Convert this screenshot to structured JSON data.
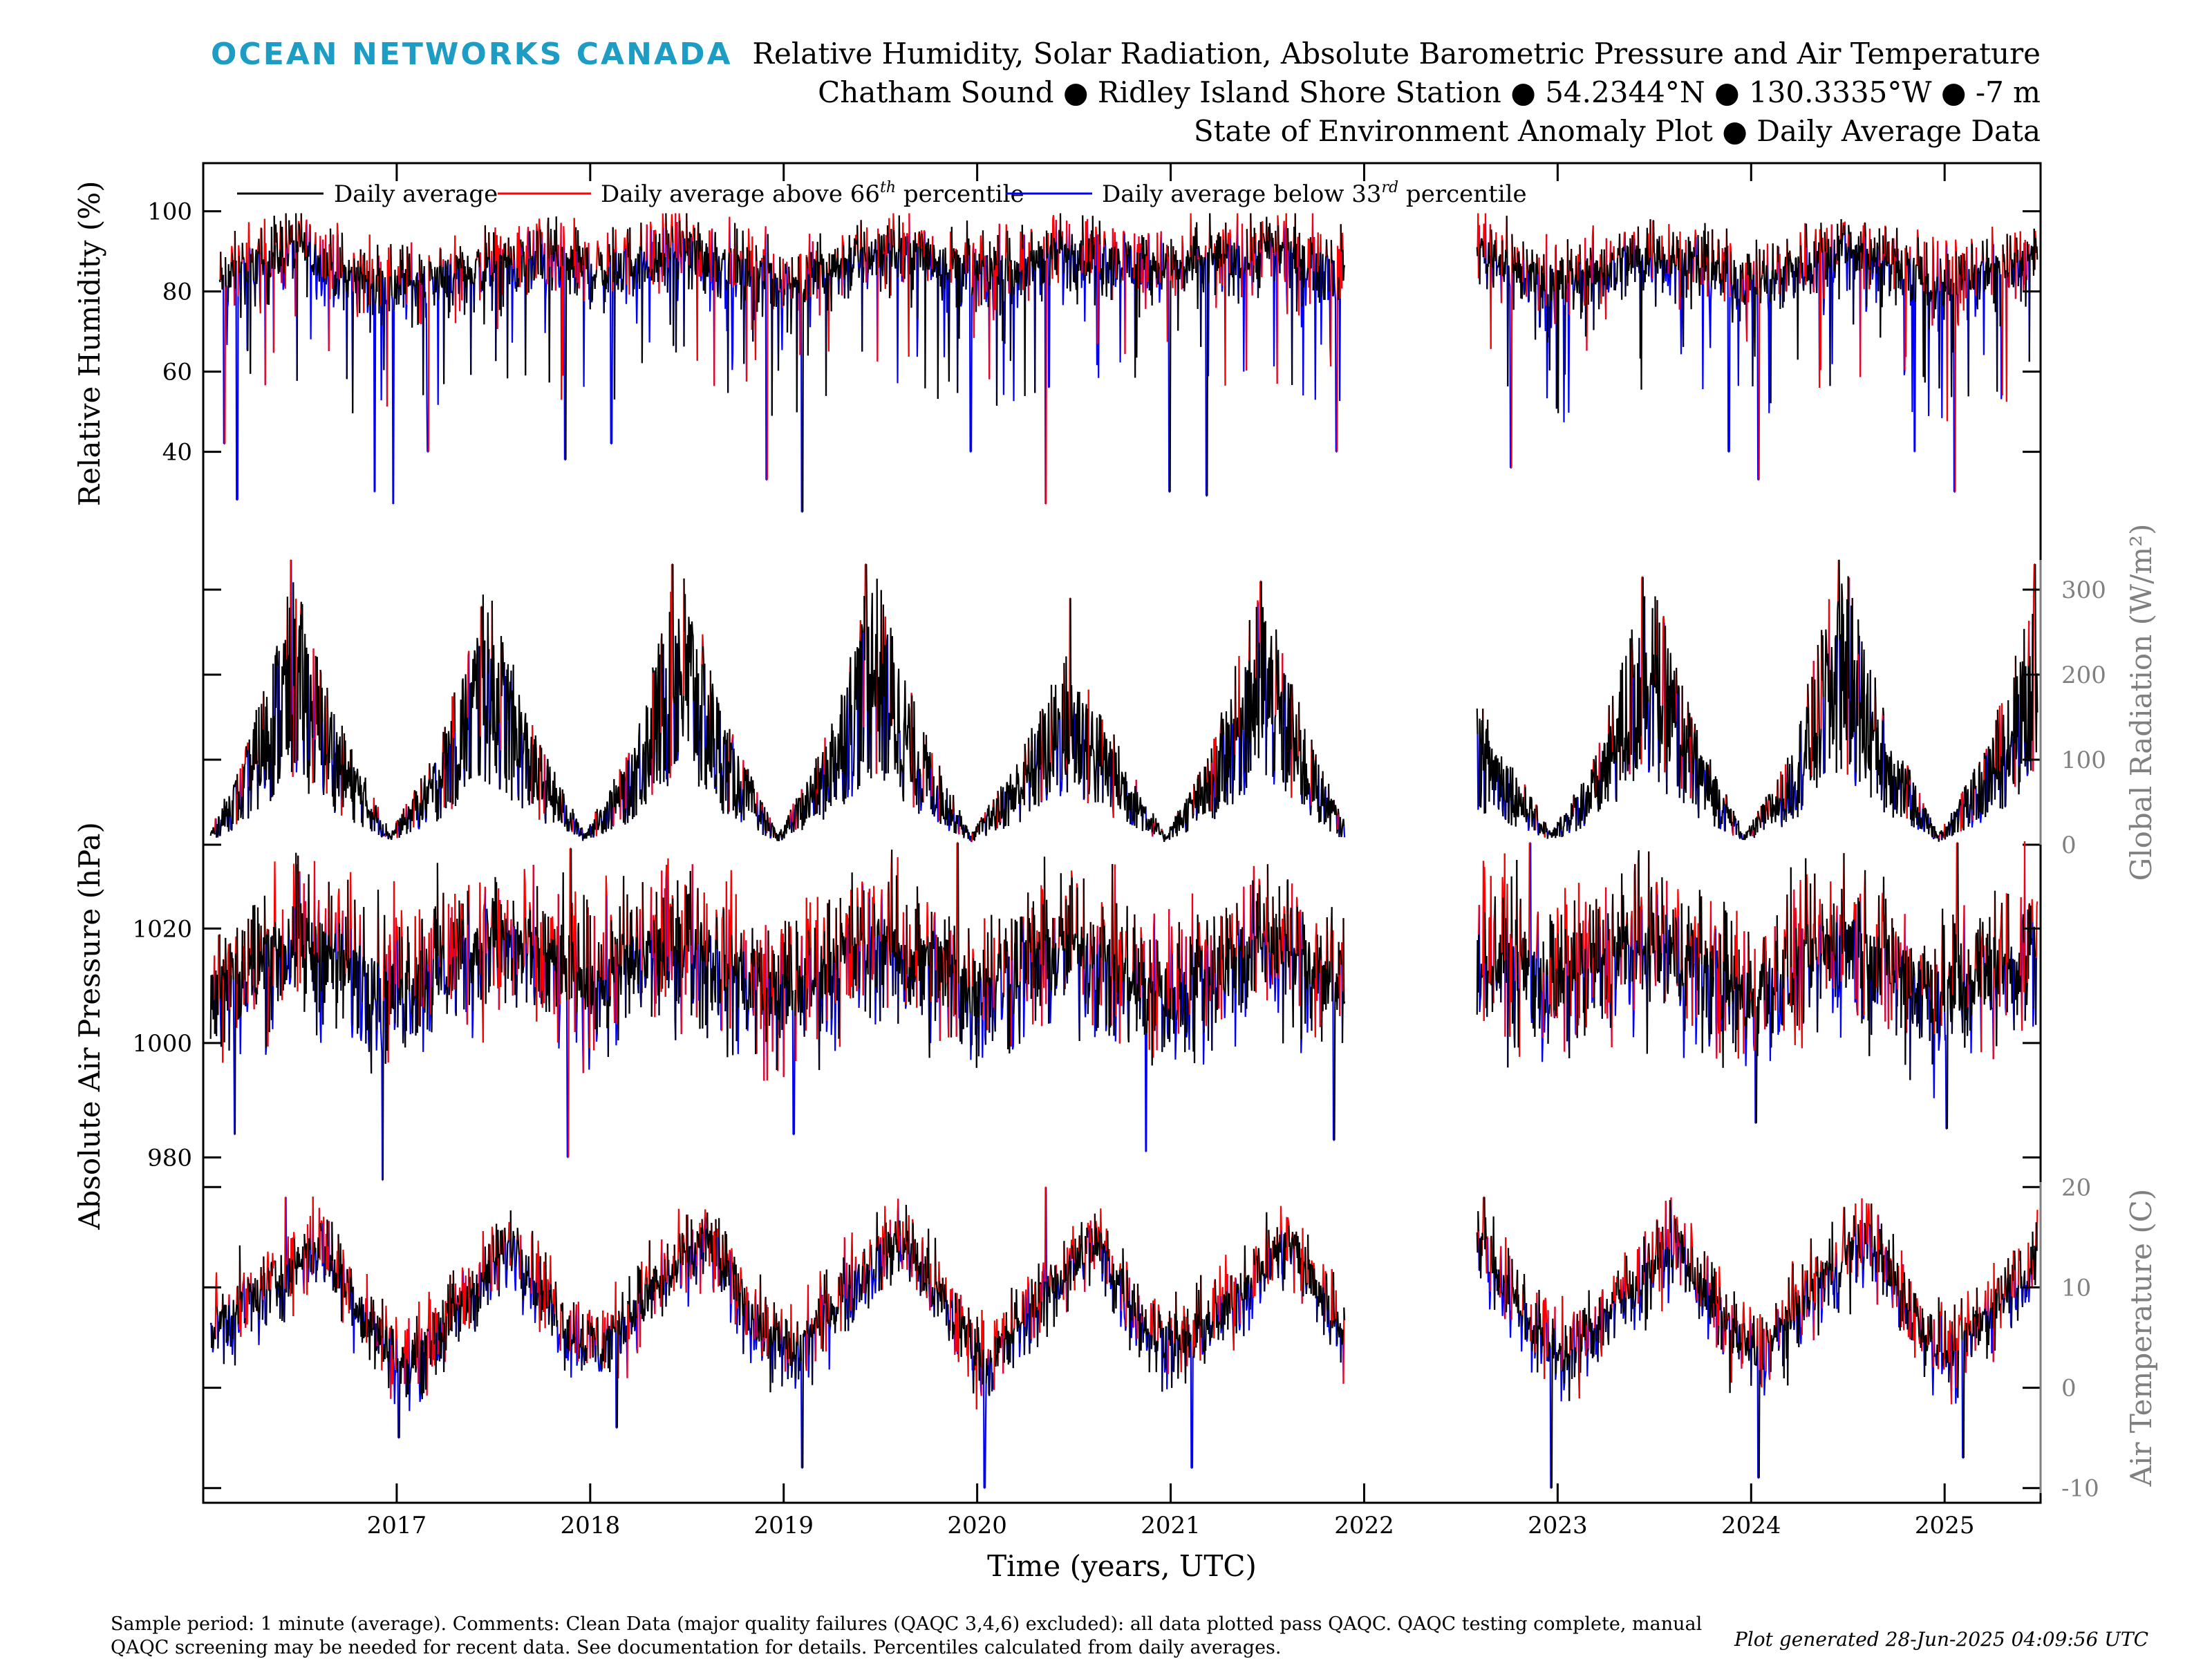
{
  "header": {
    "logo": "OCEAN NETWORKS CANADA",
    "title_line1": "Relative Humidity, Solar Radiation, Absolute Barometric Pressure and Air Temperature",
    "title_line2": "Chatham Sound ● Ridley Island Shore Station ● 54.2344°N ● 130.3335°W ● -7 m",
    "title_line3": "State of Environment Anomaly Plot ● Daily Average Data"
  },
  "legend": {
    "daily_average": "Daily average",
    "above_prefix": "Daily average above 66",
    "above_sup": "th",
    "above_suffix": " percentile",
    "below_prefix": "Daily average below 33",
    "below_sup": "rd",
    "below_suffix": " percentile"
  },
  "footer": {
    "line1": "Sample period: 1 minute (average). Comments: Clean Data (major quality failures (QAQC 3,4,6) excluded): all data plotted pass QAQC. QAQC testing complete, manual",
    "line2": "QAQC screening may be needed for recent data. See documentation for details. Percentiles calculated from daily averages.",
    "generated": "Plot generated 28-Jun-2025 04:09:56 UTC"
  },
  "colors": {
    "average": "#000000",
    "above": "#ff0000",
    "below": "#0000ff",
    "right_axis": "#808080",
    "logo": "#1d9cc4"
  },
  "chart_data": {
    "type": "line",
    "xlabel": "Time (years, UTC)",
    "x_ticks": [
      "2017",
      "2018",
      "2019",
      "2020",
      "2021",
      "2022",
      "2023",
      "2024",
      "2025"
    ],
    "xlim": [
      "2016-01-01",
      "2025-07-01"
    ],
    "data_gaps": [
      [
        "2021-11-25",
        "2022-08-01"
      ]
    ],
    "panels": [
      {
        "name": "humidity",
        "ylabel": "Relative Humidity (%)",
        "y_axis_side": "left",
        "ylim": [
          22,
          112
        ],
        "yticks": [
          40,
          60,
          80,
          100
        ],
        "anchors": [
          {
            "x": "2016-02-01",
            "y": 82
          },
          {
            "x": "2016-07-01",
            "y": 92
          },
          {
            "x": "2016-10-01",
            "y": 83
          },
          {
            "x": "2017-01-15",
            "y": 82
          },
          {
            "x": "2017-07-01",
            "y": 86
          },
          {
            "x": "2017-10-01",
            "y": 88
          },
          {
            "x": "2018-01-15",
            "y": 85
          },
          {
            "x": "2018-07-01",
            "y": 90
          },
          {
            "x": "2018-10-01",
            "y": 86
          },
          {
            "x": "2019-01-15",
            "y": 82
          },
          {
            "x": "2019-07-01",
            "y": 90
          },
          {
            "x": "2019-10-01",
            "y": 89
          },
          {
            "x": "2020-01-15",
            "y": 84
          },
          {
            "x": "2020-07-01",
            "y": 90
          },
          {
            "x": "2020-10-01",
            "y": 88
          },
          {
            "x": "2021-01-15",
            "y": 86
          },
          {
            "x": "2021-07-01",
            "y": 90
          },
          {
            "x": "2021-11-20",
            "y": 86
          },
          {
            "x": "2022-08-05",
            "y": 92
          },
          {
            "x": "2022-11-01",
            "y": 84
          },
          {
            "x": "2023-01-15",
            "y": 82
          },
          {
            "x": "2023-07-01",
            "y": 90
          },
          {
            "x": "2023-10-01",
            "y": 86
          },
          {
            "x": "2024-01-15",
            "y": 82
          },
          {
            "x": "2024-07-01",
            "y": 92
          },
          {
            "x": "2024-10-01",
            "y": 86
          },
          {
            "x": "2025-01-15",
            "y": 82
          },
          {
            "x": "2025-06-25",
            "y": 88
          }
        ],
        "dips": [
          {
            "x": "2016-02-10",
            "y": 42
          },
          {
            "x": "2016-03-05",
            "y": 28
          },
          {
            "x": "2016-11-20",
            "y": 30
          },
          {
            "x": "2016-12-25",
            "y": 27
          },
          {
            "x": "2017-03-01",
            "y": 40
          },
          {
            "x": "2017-11-15",
            "y": 38
          },
          {
            "x": "2018-02-10",
            "y": 42
          },
          {
            "x": "2018-11-30",
            "y": 33
          },
          {
            "x": "2019-02-05",
            "y": 25
          },
          {
            "x": "2019-12-20",
            "y": 40
          },
          {
            "x": "2020-05-10",
            "y": 27
          },
          {
            "x": "2020-12-30",
            "y": 30
          },
          {
            "x": "2021-03-10",
            "y": 29
          },
          {
            "x": "2021-11-10",
            "y": 40
          },
          {
            "x": "2022-10-05",
            "y": 36
          },
          {
            "x": "2023-11-20",
            "y": 40
          },
          {
            "x": "2024-01-15",
            "y": 33
          },
          {
            "x": "2024-11-05",
            "y": 40
          },
          {
            "x": "2025-01-20",
            "y": 30
          }
        ],
        "spikes": []
      },
      {
        "name": "radiation",
        "ylabel": "Global Radiation (W/m²)",
        "y_axis_side": "right",
        "ylim": [
          0,
          335
        ],
        "yticks": [
          0,
          100,
          200,
          300
        ],
        "anchors": [
          {
            "x": "2016-01-15",
            "y": 12
          },
          {
            "x": "2016-03-15",
            "y": 65
          },
          {
            "x": "2016-06-20",
            "y": 205
          },
          {
            "x": "2016-09-15",
            "y": 95
          },
          {
            "x": "2016-12-20",
            "y": 10
          },
          {
            "x": "2017-03-15",
            "y": 70
          },
          {
            "x": "2017-06-20",
            "y": 200
          },
          {
            "x": "2017-09-15",
            "y": 90
          },
          {
            "x": "2017-12-20",
            "y": 10
          },
          {
            "x": "2018-03-15",
            "y": 70
          },
          {
            "x": "2018-06-20",
            "y": 220
          },
          {
            "x": "2018-09-15",
            "y": 95
          },
          {
            "x": "2018-12-20",
            "y": 8
          },
          {
            "x": "2019-03-15",
            "y": 75
          },
          {
            "x": "2019-06-20",
            "y": 215
          },
          {
            "x": "2019-09-15",
            "y": 95
          },
          {
            "x": "2019-12-20",
            "y": 8
          },
          {
            "x": "2020-03-15",
            "y": 65
          },
          {
            "x": "2020-06-20",
            "y": 150
          },
          {
            "x": "2020-09-15",
            "y": 85
          },
          {
            "x": "2020-12-20",
            "y": 8
          },
          {
            "x": "2021-03-15",
            "y": 70
          },
          {
            "x": "2021-06-20",
            "y": 200
          },
          {
            "x": "2021-09-15",
            "y": 90
          },
          {
            "x": "2021-11-20",
            "y": 20
          },
          {
            "x": "2022-08-05",
            "y": 110
          },
          {
            "x": "2022-12-20",
            "y": 10
          },
          {
            "x": "2023-03-15",
            "y": 70
          },
          {
            "x": "2023-06-20",
            "y": 215
          },
          {
            "x": "2023-09-15",
            "y": 95
          },
          {
            "x": "2023-12-20",
            "y": 8
          },
          {
            "x": "2024-03-15",
            "y": 70
          },
          {
            "x": "2024-06-20",
            "y": 225
          },
          {
            "x": "2024-09-15",
            "y": 95
          },
          {
            "x": "2024-12-20",
            "y": 8
          },
          {
            "x": "2025-03-15",
            "y": 70
          },
          {
            "x": "2025-06-25",
            "y": 200
          }
        ],
        "dips": [],
        "spikes": [
          {
            "x": "2016-06-15",
            "y": 335
          },
          {
            "x": "2017-06-10",
            "y": 280
          },
          {
            "x": "2018-06-05",
            "y": 330
          },
          {
            "x": "2019-06-05",
            "y": 330
          },
          {
            "x": "2020-06-25",
            "y": 290
          },
          {
            "x": "2021-06-20",
            "y": 310
          },
          {
            "x": "2023-06-10",
            "y": 315
          },
          {
            "x": "2024-06-15",
            "y": 335
          },
          {
            "x": "2025-06-20",
            "y": 330
          }
        ]
      },
      {
        "name": "pressure",
        "ylabel": "Absolute Air Pressure (hPa)",
        "y_axis_side": "left",
        "ylim": [
          974,
          1032
        ],
        "yticks": [
          980,
          1000,
          1020
        ],
        "anchors": [
          {
            "x": "2016-01-15",
            "y": 1008
          },
          {
            "x": "2016-07-01",
            "y": 1018
          },
          {
            "x": "2016-12-15",
            "y": 1010
          },
          {
            "x": "2017-07-01",
            "y": 1018
          },
          {
            "x": "2017-12-15",
            "y": 1010
          },
          {
            "x": "2018-07-01",
            "y": 1018
          },
          {
            "x": "2018-12-15",
            "y": 1008
          },
          {
            "x": "2019-07-01",
            "y": 1018
          },
          {
            "x": "2019-12-15",
            "y": 1009
          },
          {
            "x": "2020-07-01",
            "y": 1017
          },
          {
            "x": "2020-12-15",
            "y": 1008
          },
          {
            "x": "2021-07-01",
            "y": 1018
          },
          {
            "x": "2021-11-20",
            "y": 1010
          },
          {
            "x": "2022-08-05",
            "y": 1017
          },
          {
            "x": "2022-12-15",
            "y": 1010
          },
          {
            "x": "2023-07-01",
            "y": 1018
          },
          {
            "x": "2023-12-15",
            "y": 1008
          },
          {
            "x": "2024-07-01",
            "y": 1018
          },
          {
            "x": "2024-12-15",
            "y": 1008
          },
          {
            "x": "2025-06-25",
            "y": 1016
          }
        ],
        "dips": [
          {
            "x": "2016-03-01",
            "y": 984
          },
          {
            "x": "2016-12-05",
            "y": 976
          },
          {
            "x": "2017-11-20",
            "y": 980
          },
          {
            "x": "2019-01-20",
            "y": 984
          },
          {
            "x": "2020-11-15",
            "y": 981
          },
          {
            "x": "2021-11-05",
            "y": 983
          },
          {
            "x": "2024-01-10",
            "y": 986
          },
          {
            "x": "2025-01-05",
            "y": 985
          }
        ],
        "spikes": [
          {
            "x": "2017-11-25",
            "y": 1034
          },
          {
            "x": "2019-11-25",
            "y": 1035
          },
          {
            "x": "2022-11-10",
            "y": 1035
          },
          {
            "x": "2025-01-25",
            "y": 1035
          }
        ]
      },
      {
        "name": "temperature",
        "ylabel": "Air Temperature (C)",
        "y_axis_side": "right",
        "ylim": [
          -10.5,
          20.5
        ],
        "yticks": [
          -10,
          0,
          10,
          20
        ],
        "anchors": [
          {
            "x": "2016-01-15",
            "y": 6
          },
          {
            "x": "2016-04-15",
            "y": 9
          },
          {
            "x": "2016-08-10",
            "y": 14.5
          },
          {
            "x": "2016-11-15",
            "y": 6
          },
          {
            "x": "2017-01-20",
            "y": 2
          },
          {
            "x": "2017-04-15",
            "y": 7
          },
          {
            "x": "2017-08-10",
            "y": 14.5
          },
          {
            "x": "2017-11-15",
            "y": 6
          },
          {
            "x": "2018-01-20",
            "y": 4
          },
          {
            "x": "2018-04-15",
            "y": 9
          },
          {
            "x": "2018-08-10",
            "y": 14.5
          },
          {
            "x": "2018-11-15",
            "y": 6
          },
          {
            "x": "2019-01-20",
            "y": 3
          },
          {
            "x": "2019-04-15",
            "y": 9
          },
          {
            "x": "2019-08-10",
            "y": 15
          },
          {
            "x": "2019-11-15",
            "y": 7
          },
          {
            "x": "2020-01-20",
            "y": 2
          },
          {
            "x": "2020-04-15",
            "y": 8
          },
          {
            "x": "2020-08-10",
            "y": 14.5
          },
          {
            "x": "2020-11-15",
            "y": 6
          },
          {
            "x": "2021-01-20",
            "y": 4
          },
          {
            "x": "2021-04-15",
            "y": 8
          },
          {
            "x": "2021-08-10",
            "y": 14.5
          },
          {
            "x": "2021-11-20",
            "y": 6
          },
          {
            "x": "2022-08-05",
            "y": 14.5
          },
          {
            "x": "2022-11-15",
            "y": 6
          },
          {
            "x": "2023-01-20",
            "y": 3
          },
          {
            "x": "2023-04-15",
            "y": 8
          },
          {
            "x": "2023-08-10",
            "y": 14.5
          },
          {
            "x": "2023-11-15",
            "y": 6
          },
          {
            "x": "2024-01-20",
            "y": 3
          },
          {
            "x": "2024-04-15",
            "y": 9
          },
          {
            "x": "2024-08-10",
            "y": 15
          },
          {
            "x": "2024-11-15",
            "y": 6
          },
          {
            "x": "2025-01-20",
            "y": 3
          },
          {
            "x": "2025-04-15",
            "y": 9
          },
          {
            "x": "2025-06-25",
            "y": 13
          }
        ],
        "dips": [
          {
            "x": "2017-01-05",
            "y": -5
          },
          {
            "x": "2018-02-20",
            "y": -4
          },
          {
            "x": "2019-02-05",
            "y": -8
          },
          {
            "x": "2020-01-15",
            "y": -10
          },
          {
            "x": "2021-02-10",
            "y": -8
          },
          {
            "x": "2022-12-20",
            "y": -10
          },
          {
            "x": "2024-01-15",
            "y": -9
          },
          {
            "x": "2025-02-05",
            "y": -7
          }
        ],
        "spikes": [
          {
            "x": "2016-06-05",
            "y": 19
          },
          {
            "x": "2020-05-10",
            "y": 20
          },
          {
            "x": "2022-08-15",
            "y": 19
          },
          {
            "x": "2024-06-25",
            "y": 18
          }
        ]
      }
    ]
  }
}
